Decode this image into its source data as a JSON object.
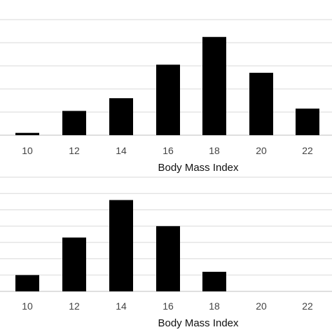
{
  "chart_data": [
    {
      "type": "bar",
      "categories": [
        "10",
        "12",
        "14",
        "16",
        "18",
        "20",
        "22"
      ],
      "values": [
        0.1,
        1.05,
        1.6,
        3.05,
        4.25,
        2.7,
        1.15
      ],
      "xlabel": "Body Mass Index",
      "ylabel": "",
      "ylim": [
        0,
        5
      ],
      "grid": true,
      "bar_color": "#000000"
    },
    {
      "type": "bar",
      "categories": [
        "10",
        "12",
        "14",
        "16",
        "18",
        "20",
        "22"
      ],
      "values": [
        1,
        3.3,
        5.6,
        4,
        1.2,
        0,
        0
      ],
      "xlabel": "Body Mass Index",
      "ylabel": "",
      "ylim": [
        0,
        7
      ],
      "grid": true,
      "bar_color": "#000000"
    }
  ],
  "colors": {
    "bar": "#000000",
    "grid": "#d9d9d9",
    "background": "#ffffff"
  }
}
